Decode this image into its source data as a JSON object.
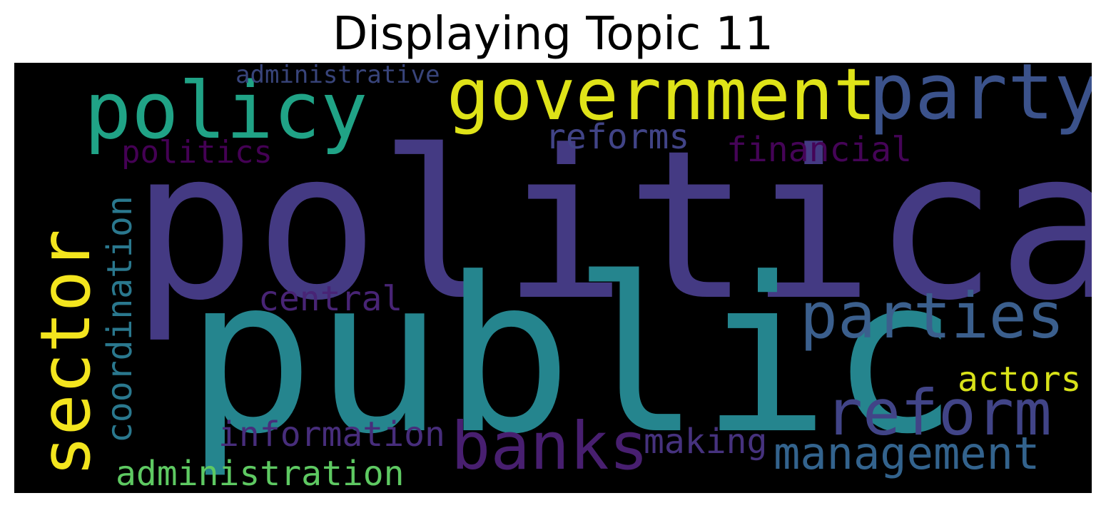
{
  "title": "Displaying Topic 11",
  "words": [
    {
      "id": "political",
      "text": "political",
      "color": "#443a83"
    },
    {
      "id": "public",
      "text": "public",
      "color": "#25858e"
    },
    {
      "id": "government",
      "text": "government",
      "color": "#dfe318"
    },
    {
      "id": "party",
      "text": "party",
      "color": "#3b528b"
    },
    {
      "id": "policy",
      "text": "policy",
      "color": "#20a386"
    },
    {
      "id": "parties",
      "text": "parties",
      "color": "#3b5f8d"
    },
    {
      "id": "reform",
      "text": "reform",
      "color": "#414487"
    },
    {
      "id": "sector",
      "text": "sector",
      "color": "#f3e51e"
    },
    {
      "id": "banks",
      "text": "banks",
      "color": "#481f70"
    },
    {
      "id": "management",
      "text": "management",
      "color": "#33638d"
    },
    {
      "id": "administration",
      "text": "administration",
      "color": "#5ec962"
    },
    {
      "id": "coordination",
      "text": "coordination",
      "color": "#2a788e"
    },
    {
      "id": "information",
      "text": "information",
      "color": "#472d7b"
    },
    {
      "id": "actors",
      "text": "actors",
      "color": "#d8e219"
    },
    {
      "id": "making",
      "text": "making",
      "color": "#46327e"
    },
    {
      "id": "central",
      "text": "central",
      "color": "#482475"
    },
    {
      "id": "reforms",
      "text": "reforms",
      "color": "#414487"
    },
    {
      "id": "financial",
      "text": "financial",
      "color": "#450457"
    },
    {
      "id": "politics",
      "text": "politics",
      "color": "#440154"
    },
    {
      "id": "administrative",
      "text": "administrative",
      "color": "#38447a"
    }
  ]
}
